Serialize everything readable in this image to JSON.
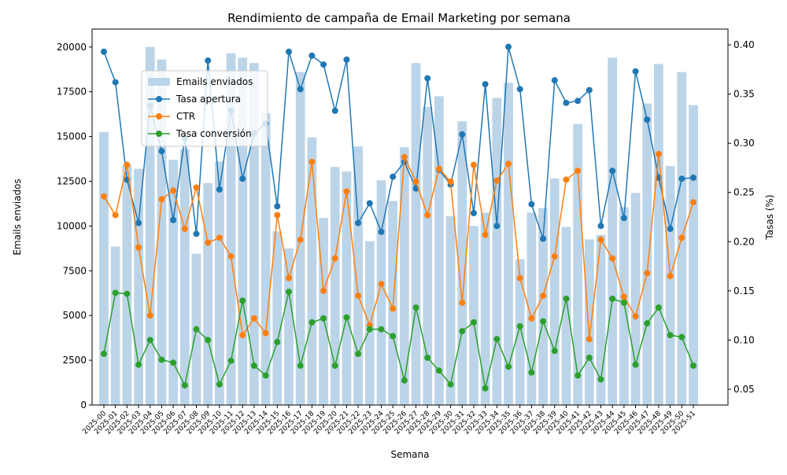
{
  "chart_data": {
    "type": "combo",
    "title": "Rendimiento de campaña de Email Marketing por semana",
    "x_label": "Semana",
    "y_label": "Emails enviados",
    "y2_label": "Tasas (%)",
    "categories": [
      "2025-00",
      "2025-01",
      "2025-02",
      "2025-03",
      "2025-04",
      "2025-05",
      "2025-06",
      "2025-07",
      "2025-08",
      "2025-09",
      "2025-10",
      "2025-11",
      "2025-12",
      "2025-13",
      "2025-14",
      "2025-15",
      "2025-16",
      "2025-17",
      "2025-18",
      "2025-19",
      "2025-20",
      "2025-21",
      "2025-22",
      "2025-23",
      "2025-24",
      "2025-25",
      "2025-26",
      "2025-27",
      "2025-28",
      "2025-29",
      "2025-30",
      "2025-31",
      "2025-32",
      "2025-33",
      "2025-34",
      "2025-35",
      "2025-36",
      "2025-37",
      "2025-38",
      "2025-39",
      "2025-40",
      "2025-41",
      "2025-42",
      "2025-43",
      "2025-44",
      "2025-45",
      "2025-46",
      "2025-47",
      "2025-48",
      "2025-49",
      "2025-50",
      "2025-51"
    ],
    "ylim": [
      0,
      21000
    ],
    "yticks": [
      0,
      2500,
      5000,
      7500,
      10000,
      12500,
      15000,
      17500,
      20000
    ],
    "y2lim": [
      0.034,
      0.416
    ],
    "y2ticks": [
      0.05,
      {
        "value": 0.1,
        "label": "0.10"
      },
      0.15,
      {
        "value": 0.2,
        "label": "0.20"
      },
      0.25,
      {
        "value": 0.3,
        "label": "0.30"
      },
      0.35,
      {
        "value": 0.4,
        "label": "0.40"
      }
    ],
    "legend": "upper left",
    "series": [
      {
        "name": "Emails enviados",
        "type": "bar",
        "color": "#bcd4e8",
        "values": [
          15250,
          8850,
          13400,
          13200,
          20000,
          19300,
          13700,
          14300,
          8450,
          12400,
          13600,
          19650,
          19400,
          19100,
          16300,
          9700,
          8750,
          18600,
          14950,
          10450,
          13300,
          13050,
          14450,
          9150,
          12550,
          11400,
          14400,
          19100,
          16650,
          17250,
          10550,
          15850,
          10000,
          10750,
          17150,
          18000,
          8150,
          10750,
          11000,
          12650,
          9950,
          15700,
          9250,
          9500,
          19400,
          11050,
          11850,
          16850,
          19050,
          13350,
          18600,
          16750
        ]
      },
      {
        "name": "Tasa apertura",
        "type": "line",
        "axis": "y2",
        "color": "#1f77b4",
        "values": [
          0.393,
          0.362,
          0.263,
          0.219,
          0.338,
          0.292,
          0.222,
          0.305,
          0.208,
          0.384,
          0.253,
          0.333,
          0.264,
          0.31,
          0.32,
          0.236,
          0.393,
          0.355,
          0.389,
          0.38,
          0.333,
          0.385,
          0.219,
          0.239,
          0.21,
          0.266,
          0.281,
          0.254,
          0.366,
          0.273,
          0.258,
          0.309,
          0.229,
          0.36,
          0.216,
          0.398,
          0.355,
          0.238,
          0.203,
          0.364,
          0.341,
          0.343,
          0.354,
          0.216,
          0.272,
          0.224,
          0.373,
          0.324,
          0.265,
          0.213,
          0.264,
          0.265
        ]
      },
      {
        "name": "CTR",
        "type": "line",
        "axis": "y2",
        "color": "#ff7f0e",
        "values": [
          0.246,
          0.227,
          0.278,
          0.194,
          0.125,
          0.243,
          0.252,
          0.213,
          0.255,
          0.199,
          0.204,
          0.185,
          0.105,
          0.122,
          0.107,
          0.227,
          0.163,
          0.202,
          0.281,
          0.15,
          0.183,
          0.251,
          0.145,
          0.115,
          0.157,
          0.132,
          0.286,
          0.261,
          0.227,
          0.274,
          0.261,
          0.138,
          0.278,
          0.207,
          0.262,
          0.279,
          0.163,
          0.122,
          0.145,
          0.185,
          0.263,
          0.272,
          0.101,
          0.202,
          0.183,
          0.144,
          0.124,
          0.168,
          0.289,
          0.165,
          0.204,
          0.24
        ]
      },
      {
        "name": "Tasa conversión",
        "type": "line",
        "axis": "y2",
        "color": "#2ca02c",
        "values": [
          0.086,
          0.148,
          0.147,
          0.075,
          0.1,
          0.08,
          0.077,
          0.054,
          0.111,
          0.1,
          0.055,
          0.079,
          0.14,
          0.074,
          0.064,
          0.098,
          0.149,
          0.074,
          0.118,
          0.122,
          0.074,
          0.123,
          0.086,
          0.111,
          0.111,
          0.104,
          0.059,
          0.133,
          0.082,
          0.069,
          0.055,
          0.109,
          0.118,
          0.051,
          0.101,
          0.073,
          0.114,
          0.067,
          0.119,
          0.089,
          0.142,
          0.064,
          0.082,
          0.06,
          0.142,
          0.138,
          0.075,
          0.117,
          0.133,
          0.105,
          0.103,
          0.074
        ]
      }
    ]
  }
}
